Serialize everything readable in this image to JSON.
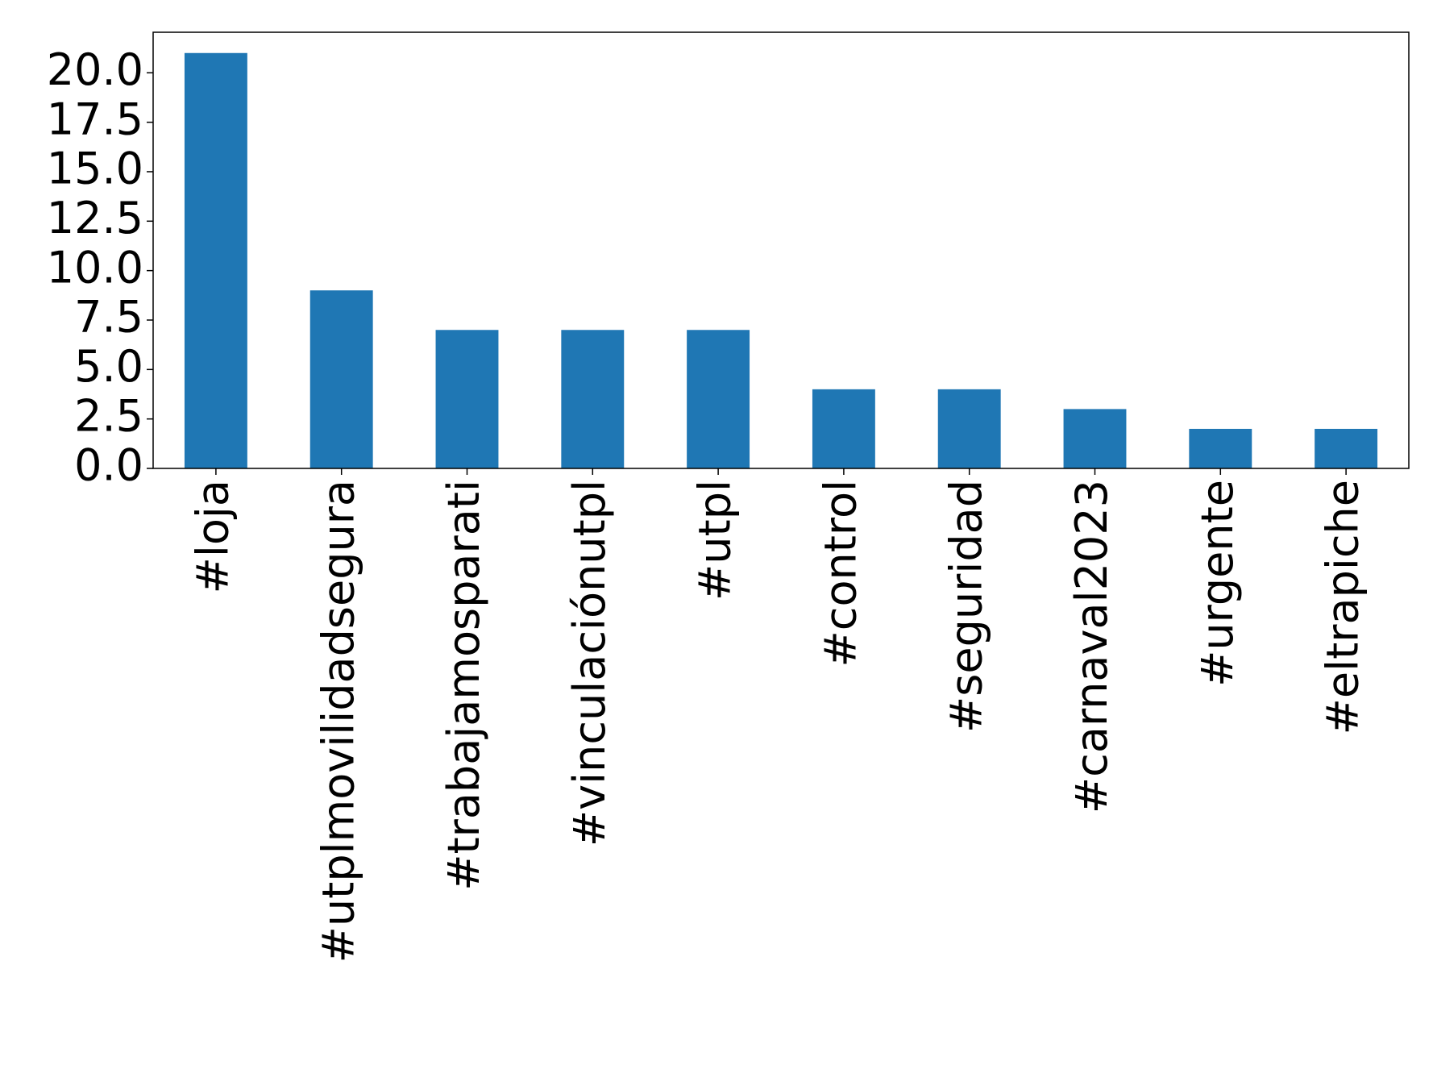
{
  "chart_data": {
    "type": "bar",
    "categories": [
      "#loja",
      "#utplmovilidadsegura",
      "#trabajamosparati",
      "#vinculaciónutpl",
      "#utpl",
      "#control",
      "#seguridad",
      "#carnaval2023",
      "#urgente",
      "#eltrapiche"
    ],
    "values": [
      21,
      9,
      7,
      7,
      7,
      4,
      4,
      3,
      2,
      2
    ],
    "color": "#1f77b4",
    "ylim": [
      0,
      22.05
    ],
    "yticks": [
      {
        "value": 0,
        "label": "0.0"
      },
      {
        "value": 2.5,
        "label": "2.5"
      },
      {
        "value": 5,
        "label": "5.0"
      },
      {
        "value": 7.5,
        "label": "7.5"
      },
      {
        "value": 10,
        "label": "10.0"
      },
      {
        "value": 12.5,
        "label": "12.5"
      },
      {
        "value": 15,
        "label": "15.0"
      },
      {
        "value": 17.5,
        "label": "17.5"
      },
      {
        "value": 20,
        "label": "20.0"
      }
    ],
    "grid": false
  }
}
